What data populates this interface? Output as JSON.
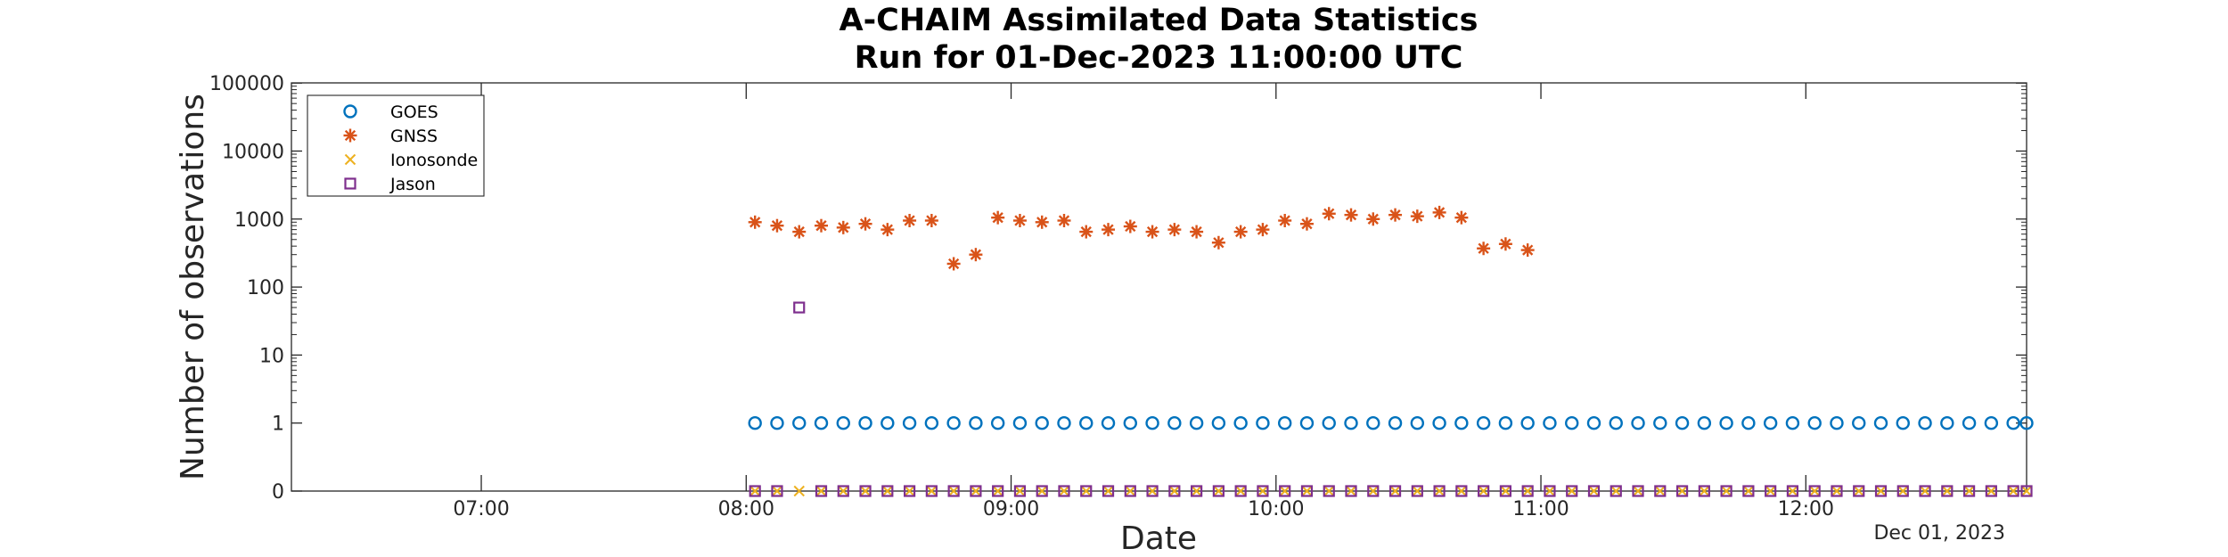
{
  "chart_data": {
    "type": "scatter",
    "title": [
      "A-CHAIM Assimilated Data Statistics",
      "Run for 01-Dec-2023 11:00:00 UTC"
    ],
    "xlabel": "Date",
    "ylabel": "Number of observations",
    "x_date_label": "Dec 01, 2023",
    "y_scale": "log",
    "y_ticks": [
      "0",
      "1",
      "10",
      "100",
      "1000",
      "10000",
      "100000"
    ],
    "x_ticks": [
      "07:00",
      "08:00",
      "09:00",
      "10:00",
      "11:00",
      "12:00"
    ],
    "xlim": [
      "06:17",
      "12:50"
    ],
    "legend_position": "top-left",
    "series": [
      {
        "name": "GOES",
        "marker": "circle",
        "color": "#0072BD",
        "x": [
          "08:02",
          "08:07",
          "08:12",
          "08:17",
          "08:22",
          "08:27",
          "08:32",
          "08:37",
          "08:42",
          "08:47",
          "08:52",
          "08:57",
          "09:02",
          "09:07",
          "09:12",
          "09:17",
          "09:22",
          "09:27",
          "09:32",
          "09:37",
          "09:42",
          "09:47",
          "09:52",
          "09:57",
          "10:02",
          "10:07",
          "10:12",
          "10:17",
          "10:22",
          "10:27",
          "10:32",
          "10:37",
          "10:42",
          "10:47",
          "10:52",
          "10:57",
          "11:02",
          "11:07",
          "11:12",
          "11:17",
          "11:22",
          "11:27",
          "11:32",
          "11:37",
          "11:42",
          "11:47",
          "11:52",
          "11:57",
          "12:02",
          "12:07",
          "12:12",
          "12:17",
          "12:22",
          "12:27",
          "12:32",
          "12:37",
          "12:42",
          "12:47",
          "12:50"
        ],
        "y": [
          1,
          1,
          1,
          1,
          1,
          1,
          1,
          1,
          1,
          1,
          1,
          1,
          1,
          1,
          1,
          1,
          1,
          1,
          1,
          1,
          1,
          1,
          1,
          1,
          1,
          1,
          1,
          1,
          1,
          1,
          1,
          1,
          1,
          1,
          1,
          1,
          1,
          1,
          1,
          1,
          1,
          1,
          1,
          1,
          1,
          1,
          1,
          1,
          1,
          1,
          1,
          1,
          1,
          1,
          1,
          1,
          1,
          1,
          1
        ]
      },
      {
        "name": "GNSS",
        "marker": "asterisk",
        "color": "#D95319",
        "x": [
          "08:02",
          "08:07",
          "08:12",
          "08:17",
          "08:22",
          "08:27",
          "08:32",
          "08:37",
          "08:42",
          "08:47",
          "08:52",
          "08:57",
          "09:02",
          "09:07",
          "09:12",
          "09:17",
          "09:22",
          "09:27",
          "09:32",
          "09:37",
          "09:42",
          "09:47",
          "09:52",
          "09:57",
          "10:02",
          "10:07",
          "10:12",
          "10:17",
          "10:22",
          "10:27",
          "10:32",
          "10:37",
          "10:42",
          "10:47",
          "10:52",
          "10:57"
        ],
        "y": [
          900,
          800,
          650,
          800,
          750,
          850,
          700,
          950,
          950,
          220,
          300,
          1050,
          950,
          900,
          950,
          650,
          700,
          780,
          650,
          700,
          650,
          450,
          650,
          700,
          950,
          850,
          1200,
          1150,
          1000,
          1150,
          1100,
          1250,
          1050,
          370,
          430,
          350
        ]
      },
      {
        "name": "Ionosonde",
        "marker": "x",
        "color": "#EDB120",
        "x": [
          "08:02",
          "08:07",
          "08:12",
          "08:17",
          "08:22",
          "08:27",
          "08:32",
          "08:37",
          "08:42",
          "08:47",
          "08:52",
          "08:57",
          "09:02",
          "09:07",
          "09:12",
          "09:17",
          "09:22",
          "09:27",
          "09:32",
          "09:37",
          "09:42",
          "09:47",
          "09:52",
          "09:57",
          "10:02",
          "10:07",
          "10:12",
          "10:17",
          "10:22",
          "10:27",
          "10:32",
          "10:37",
          "10:42",
          "10:47",
          "10:52",
          "10:57",
          "11:02",
          "11:07",
          "11:12",
          "11:17",
          "11:22",
          "11:27",
          "11:32",
          "11:37",
          "11:42",
          "11:47",
          "11:52",
          "11:57",
          "12:02",
          "12:07",
          "12:12",
          "12:17",
          "12:22",
          "12:27",
          "12:32",
          "12:37",
          "12:42",
          "12:47",
          "12:50"
        ],
        "y": [
          0,
          0,
          0,
          0,
          0,
          0,
          0,
          0,
          0,
          0,
          0,
          0,
          0,
          0,
          0,
          0,
          0,
          0,
          0,
          0,
          0,
          0,
          0,
          0,
          0,
          0,
          0,
          0,
          0,
          0,
          0,
          0,
          0,
          0,
          0,
          0,
          0,
          0,
          0,
          0,
          0,
          0,
          0,
          0,
          0,
          0,
          0,
          0,
          0,
          0,
          0,
          0,
          0,
          0,
          0,
          0,
          0,
          0,
          0
        ]
      },
      {
        "name": "Jason",
        "marker": "square",
        "color": "#7E2F8E",
        "x": [
          "08:02",
          "08:07",
          "08:12",
          "08:17",
          "08:22",
          "08:27",
          "08:32",
          "08:37",
          "08:42",
          "08:47",
          "08:52",
          "08:57",
          "09:02",
          "09:07",
          "09:12",
          "09:17",
          "09:22",
          "09:27",
          "09:32",
          "09:37",
          "09:42",
          "09:47",
          "09:52",
          "09:57",
          "10:02",
          "10:07",
          "10:12",
          "10:17",
          "10:22",
          "10:27",
          "10:32",
          "10:37",
          "10:42",
          "10:47",
          "10:52",
          "10:57",
          "11:02",
          "11:07",
          "11:12",
          "11:17",
          "11:22",
          "11:27",
          "11:32",
          "11:37",
          "11:42",
          "11:47",
          "11:52",
          "11:57",
          "12:02",
          "12:07",
          "12:12",
          "12:17",
          "12:22",
          "12:27",
          "12:32",
          "12:37",
          "12:42",
          "12:47",
          "12:50"
        ],
        "y": [
          0,
          0,
          50,
          0,
          0,
          0,
          0,
          0,
          0,
          0,
          0,
          0,
          0,
          0,
          0,
          0,
          0,
          0,
          0,
          0,
          0,
          0,
          0,
          0,
          0,
          0,
          0,
          0,
          0,
          0,
          0,
          0,
          0,
          0,
          0,
          0,
          0,
          0,
          0,
          0,
          0,
          0,
          0,
          0,
          0,
          0,
          0,
          0,
          0,
          0,
          0,
          0,
          0,
          0,
          0,
          0,
          0,
          0,
          0
        ]
      }
    ]
  }
}
